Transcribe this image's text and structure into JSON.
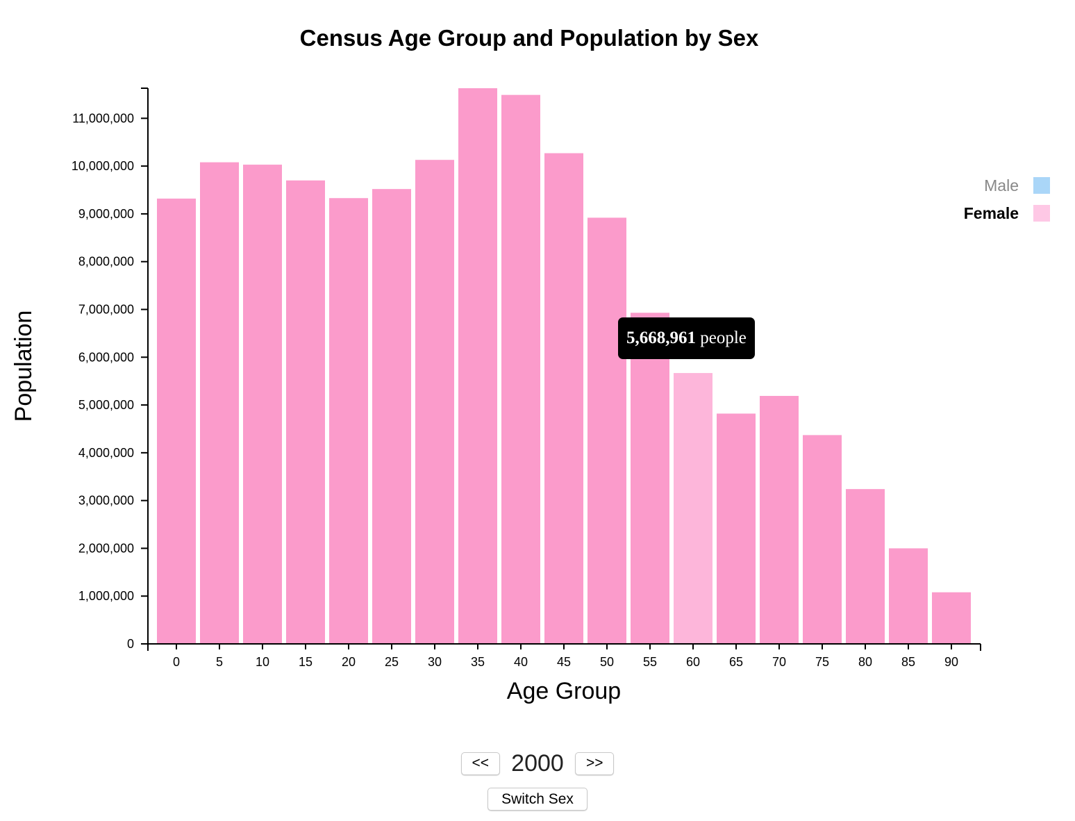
{
  "chart_data": {
    "type": "bar",
    "title": "Census Age Group and Population by Sex",
    "xlabel": "Age Group",
    "ylabel": "Population",
    "categories": [
      "0",
      "5",
      "10",
      "15",
      "20",
      "25",
      "30",
      "35",
      "40",
      "45",
      "50",
      "55",
      "60",
      "65",
      "70",
      "75",
      "80",
      "85",
      "90"
    ],
    "series": [
      {
        "name": "Female",
        "values": [
          9320000,
          10080000,
          10030000,
          9700000,
          9330000,
          9520000,
          10130000,
          11630000,
          11490000,
          10270000,
          8920000,
          6930000,
          5668961,
          4820000,
          5190000,
          4370000,
          3240000,
          2000000,
          1080000
        ]
      }
    ],
    "ylim": [
      0,
      11630000
    ],
    "yticks": [
      0,
      1000000,
      2000000,
      3000000,
      4000000,
      5000000,
      6000000,
      7000000,
      8000000,
      9000000,
      10000000,
      11000000
    ],
    "ytick_labels": [
      "0",
      "1,000,000",
      "2,000,000",
      "3,000,000",
      "4,000,000",
      "5,000,000",
      "6,000,000",
      "7,000,000",
      "8,000,000",
      "9,000,000",
      "10,000,000",
      "11,000,000"
    ],
    "legend": {
      "placement": "right",
      "items": [
        {
          "label": "Male",
          "color": "#aad6f8",
          "active": false
        },
        {
          "label": "Female",
          "color": "#fec8e5",
          "active": true
        }
      ]
    },
    "bar_color": "#fb9bcb",
    "highlight_color": "#fdb6da",
    "highlight_index": 12,
    "grid": false,
    "tooltip": {
      "value": "5,668,961",
      "suffix": "people"
    }
  },
  "controls": {
    "prev_label": "<<",
    "next_label": ">>",
    "year": "2000",
    "switch_label": "Switch Sex"
  }
}
